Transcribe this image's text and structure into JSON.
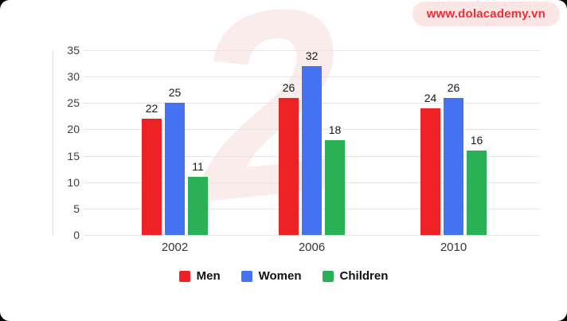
{
  "badge": {
    "text": "www.dolacademy.vn"
  },
  "watermark": {
    "glyph": "2"
  },
  "chart_data": {
    "type": "bar",
    "categories": [
      "2002",
      "2006",
      "2010"
    ],
    "series": [
      {
        "name": "Men",
        "color": "#ee2224",
        "values": [
          22,
          26,
          24
        ]
      },
      {
        "name": "Women",
        "color": "#4472f0",
        "values": [
          25,
          32,
          26
        ]
      },
      {
        "name": "Children",
        "color": "#2ab158",
        "values": [
          11,
          18,
          16
        ]
      }
    ],
    "title": "",
    "xlabel": "",
    "ylabel": "",
    "ylim": [
      0,
      35
    ],
    "yticks": [
      0,
      5,
      10,
      15,
      20,
      25,
      30,
      35
    ],
    "grid": true,
    "legend_position": "bottom"
  }
}
